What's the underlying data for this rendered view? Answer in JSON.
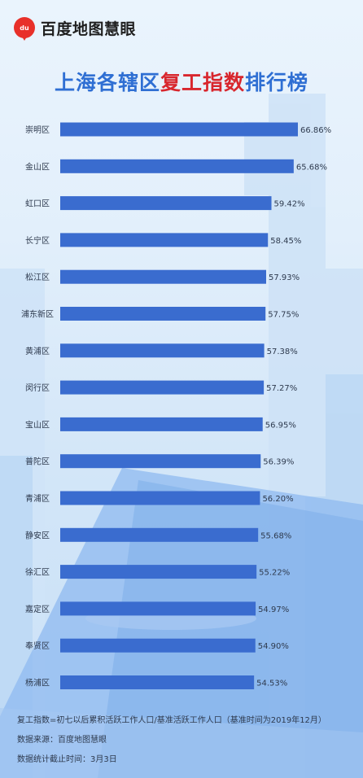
{
  "brand": {
    "logo_text": "百度地图慧眼",
    "badge": "du"
  },
  "title": {
    "part1": "上海各辖区",
    "highlight": "复工指数",
    "part2": "排行榜"
  },
  "colors": {
    "bar": "#3a6ccf",
    "highlight": "#d8262d",
    "title": "#2f6fd3"
  },
  "chart_data": {
    "type": "bar",
    "orientation": "horizontal",
    "categories": [
      "崇明区",
      "金山区",
      "虹口区",
      "长宁区",
      "松江区",
      "浦东新区",
      "黄浦区",
      "闵行区",
      "宝山区",
      "普陀区",
      "青浦区",
      "静安区",
      "徐汇区",
      "嘉定区",
      "奉贤区",
      "杨浦区"
    ],
    "values": [
      66.86,
      65.68,
      59.42,
      58.45,
      57.93,
      57.75,
      57.38,
      57.27,
      56.95,
      56.39,
      56.2,
      55.68,
      55.22,
      54.97,
      54.9,
      54.53
    ],
    "value_labels": [
      "66.86%",
      "65.68%",
      "59.42%",
      "58.45%",
      "57.93%",
      "57.75%",
      "57.38%",
      "57.27%",
      "56.95%",
      "56.39%",
      "56.20%",
      "55.68%",
      "55.22%",
      "54.97%",
      "54.90%",
      "54.53%"
    ],
    "title": "上海各辖区复工指数排行榜",
    "xlabel": "",
    "ylabel": ""
  },
  "footer": {
    "definition": "复工指数=初七以后累积活跃工作人口/基准活跃工作人口（基准时间为2019年12月）",
    "source": "数据来源：百度地图慧眼",
    "cutoff": "数据统计截止时间：3月3日"
  }
}
